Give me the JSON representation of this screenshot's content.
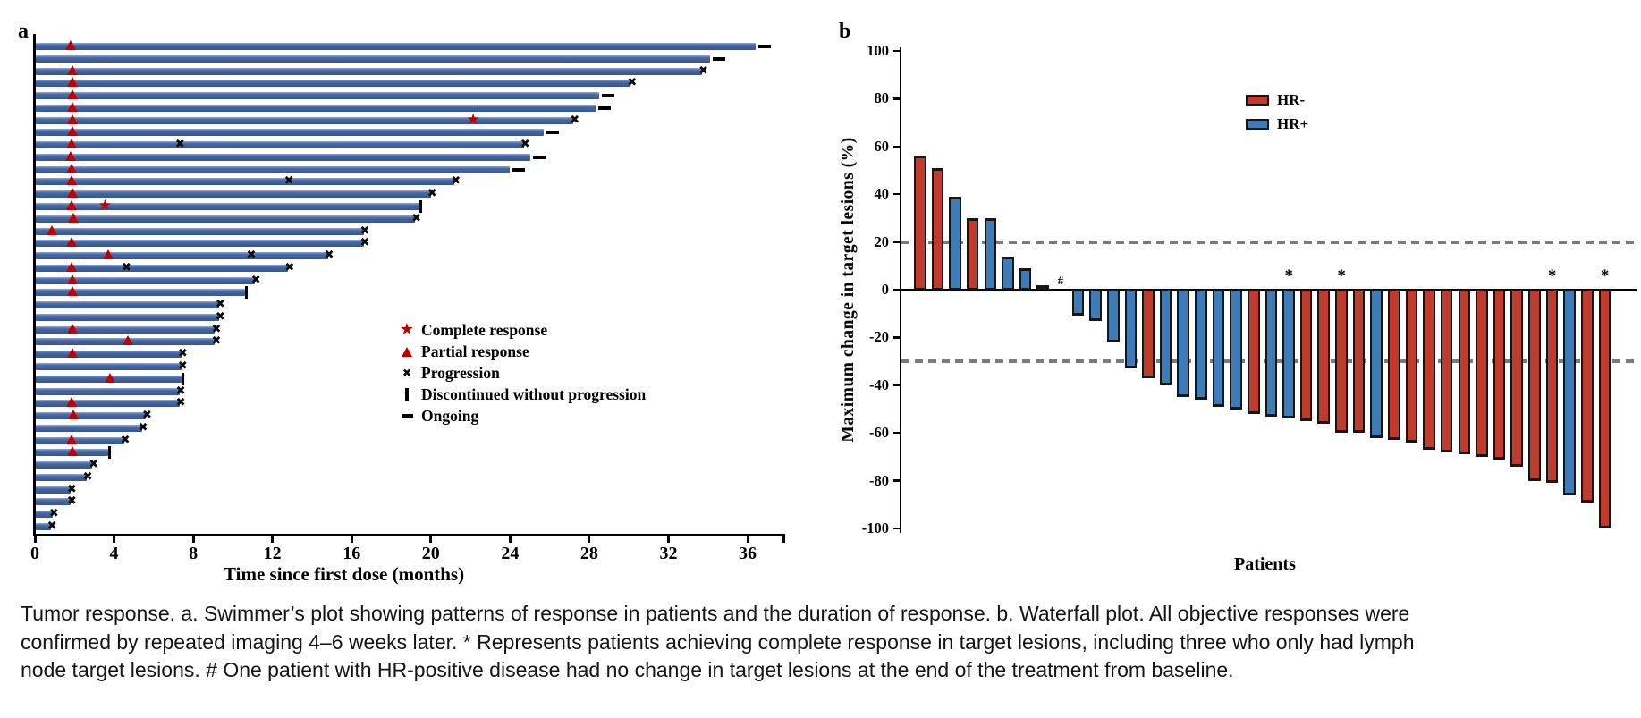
{
  "caption": {
    "lines": [
      "Tumor response. a. Swimmer’s plot showing patterns of response in patients and the duration of response. b. Waterfall plot. All objective responses were",
      "confirmed by repeated imaging 4–6 weeks later. * Represents patients achieving complete response in target lesions, including three who only had lymph",
      "node target lesions. # One patient with HR-positive disease had no change in target lesions at the end of the treatment from baseline."
    ]
  },
  "colors": {
    "swimmer_bar": "#3A5C9E",
    "marker_red": "#C00000",
    "hr_neg": "#BE3B2D",
    "hr_pos": "#3E7CB7",
    "reference_line": "#7a7a7a",
    "axis": "#000000"
  },
  "chart_data": [
    {
      "type": "bar",
      "subtype": "swimmer",
      "panel_label": "a",
      "xlabel": "Time since first dose (months)",
      "xticks": [
        0,
        4,
        8,
        12,
        16,
        20,
        24,
        28,
        32,
        36
      ],
      "xlim": [
        0,
        37.8
      ],
      "grid": false,
      "legend_position": "center-right",
      "legend": [
        {
          "marker": "star",
          "label": "Complete response"
        },
        {
          "marker": "triangle",
          "label": "Partial response"
        },
        {
          "marker": "cross",
          "label": "Progression"
        },
        {
          "marker": "vbar",
          "label": "Discontinued without progression"
        },
        {
          "marker": "dash",
          "label": "Ongoing"
        }
      ],
      "patients": [
        {
          "duration": 36.4,
          "partial_response_at": 1.8,
          "status": "ongoing"
        },
        {
          "duration": 34.1,
          "status": "ongoing"
        },
        {
          "duration": 33.7,
          "partial_response_at": 1.9,
          "status": "progression"
        },
        {
          "duration": 30.1,
          "partial_response_at": 1.9,
          "status": "progression"
        },
        {
          "duration": 28.5,
          "partial_response_at": 1.9,
          "status": "ongoing"
        },
        {
          "duration": 28.3,
          "partial_response_at": 1.9,
          "status": "ongoing"
        },
        {
          "duration": 27.2,
          "partial_response_at": 1.9,
          "complete_response_at": 22.2,
          "status": "progression"
        },
        {
          "duration": 25.7,
          "partial_response_at": 1.9,
          "status": "ongoing"
        },
        {
          "duration": 24.7,
          "partial_response_at": 1.85,
          "progression_at": [
            7.4
          ],
          "status": "progression"
        },
        {
          "duration": 25.0,
          "partial_response_at": 1.8,
          "status": "ongoing"
        },
        {
          "duration": 24.0,
          "partial_response_at": 1.85,
          "status": "ongoing"
        },
        {
          "duration": 21.2,
          "partial_response_at": 1.85,
          "progression_at": [
            12.9
          ],
          "status": "progression"
        },
        {
          "duration": 20.0,
          "partial_response_at": 1.9,
          "status": "progression"
        },
        {
          "duration": 19.4,
          "partial_response_at": 1.85,
          "complete_response_at": 3.6,
          "status": "discontinued"
        },
        {
          "duration": 19.2,
          "partial_response_at": 1.95,
          "status": "progression"
        },
        {
          "duration": 16.6,
          "partial_response_at": 0.85,
          "status": "progression"
        },
        {
          "duration": 16.6,
          "partial_response_at": 1.85,
          "status": "progression"
        },
        {
          "duration": 14.8,
          "partial_response_at": 3.7,
          "progression_at": [
            11.0
          ],
          "status": "progression"
        },
        {
          "duration": 12.8,
          "partial_response_at": 1.85,
          "progression_at": [
            4.7
          ],
          "status": "progression"
        },
        {
          "duration": 11.1,
          "partial_response_at": 1.9,
          "status": "progression"
        },
        {
          "duration": 10.6,
          "partial_response_at": 1.9,
          "status": "discontinued"
        },
        {
          "duration": 9.3,
          "status": "progression"
        },
        {
          "duration": 9.3,
          "status": "progression"
        },
        {
          "duration": 9.1,
          "partial_response_at": 1.9,
          "status": "progression"
        },
        {
          "duration": 9.1,
          "partial_response_at": 4.7,
          "status": "progression"
        },
        {
          "duration": 7.4,
          "partial_response_at": 1.9,
          "status": "progression"
        },
        {
          "duration": 7.4,
          "status": "progression"
        },
        {
          "duration": 7.4,
          "partial_response_at": 3.8,
          "status": "discontinued"
        },
        {
          "duration": 7.3,
          "status": "progression"
        },
        {
          "duration": 7.3,
          "partial_response_at": 1.85,
          "status": "progression"
        },
        {
          "duration": 5.6,
          "partial_response_at": 1.95,
          "status": "progression"
        },
        {
          "duration": 5.4,
          "status": "progression"
        },
        {
          "duration": 4.5,
          "partial_response_at": 1.85,
          "status": "progression"
        },
        {
          "duration": 3.7,
          "partial_response_at": 1.9,
          "status": "discontinued"
        },
        {
          "duration": 2.9,
          "status": "progression"
        },
        {
          "duration": 2.6,
          "status": "progression"
        },
        {
          "duration": 1.8,
          "status": "progression"
        },
        {
          "duration": 1.8,
          "status": "progression"
        },
        {
          "duration": 0.9,
          "status": "progression"
        },
        {
          "duration": 0.8,
          "status": "progression"
        }
      ]
    },
    {
      "type": "bar",
      "subtype": "waterfall",
      "panel_label": "b",
      "ylabel": "Maximum change in target lesions (%)",
      "xlabel": "Patients",
      "yticks": [
        100,
        80,
        60,
        40,
        20,
        0,
        -20,
        -40,
        -60,
        -80,
        -100
      ],
      "ylim": [
        -100,
        100
      ],
      "reference_lines": [
        20,
        -30
      ],
      "grid": false,
      "legend_position": "top-right",
      "legend": [
        {
          "label": "HR-",
          "color": "#BE3B2D"
        },
        {
          "label": "HR+",
          "color": "#3E7CB7"
        }
      ],
      "bars": [
        {
          "value": 56,
          "group": "HR-"
        },
        {
          "value": 51,
          "group": "HR-"
        },
        {
          "value": 39,
          "group": "HR+"
        },
        {
          "value": 30,
          "group": "HR-"
        },
        {
          "value": 30,
          "group": "HR+"
        },
        {
          "value": 14,
          "group": "HR+"
        },
        {
          "value": 9,
          "group": "HR+"
        },
        {
          "value": 2,
          "group": "HR-"
        },
        {
          "value": 0,
          "group": "HR+",
          "mark": "#"
        },
        {
          "value": -11,
          "group": "HR+"
        },
        {
          "value": -13,
          "group": "HR+"
        },
        {
          "value": -22,
          "group": "HR+"
        },
        {
          "value": -33,
          "group": "HR+"
        },
        {
          "value": -37,
          "group": "HR-"
        },
        {
          "value": -40,
          "group": "HR+"
        },
        {
          "value": -45,
          "group": "HR+"
        },
        {
          "value": -46,
          "group": "HR+"
        },
        {
          "value": -49,
          "group": "HR+"
        },
        {
          "value": -50,
          "group": "HR+"
        },
        {
          "value": -52,
          "group": "HR-"
        },
        {
          "value": -53,
          "group": "HR+"
        },
        {
          "value": -54,
          "group": "HR+",
          "mark": "*"
        },
        {
          "value": -55,
          "group": "HR-"
        },
        {
          "value": -56,
          "group": "HR-"
        },
        {
          "value": -60,
          "group": "HR-",
          "mark": "*"
        },
        {
          "value": -60,
          "group": "HR-"
        },
        {
          "value": -62,
          "group": "HR+"
        },
        {
          "value": -63,
          "group": "HR-"
        },
        {
          "value": -64,
          "group": "HR-"
        },
        {
          "value": -67,
          "group": "HR-"
        },
        {
          "value": -68,
          "group": "HR-"
        },
        {
          "value": -69,
          "group": "HR-"
        },
        {
          "value": -70,
          "group": "HR-"
        },
        {
          "value": -71,
          "group": "HR-"
        },
        {
          "value": -74,
          "group": "HR-"
        },
        {
          "value": -80,
          "group": "HR-"
        },
        {
          "value": -81,
          "group": "HR-",
          "mark": "*"
        },
        {
          "value": -86,
          "group": "HR+"
        },
        {
          "value": -89,
          "group": "HR-"
        },
        {
          "value": -100,
          "group": "HR-",
          "mark": "*"
        }
      ]
    }
  ]
}
